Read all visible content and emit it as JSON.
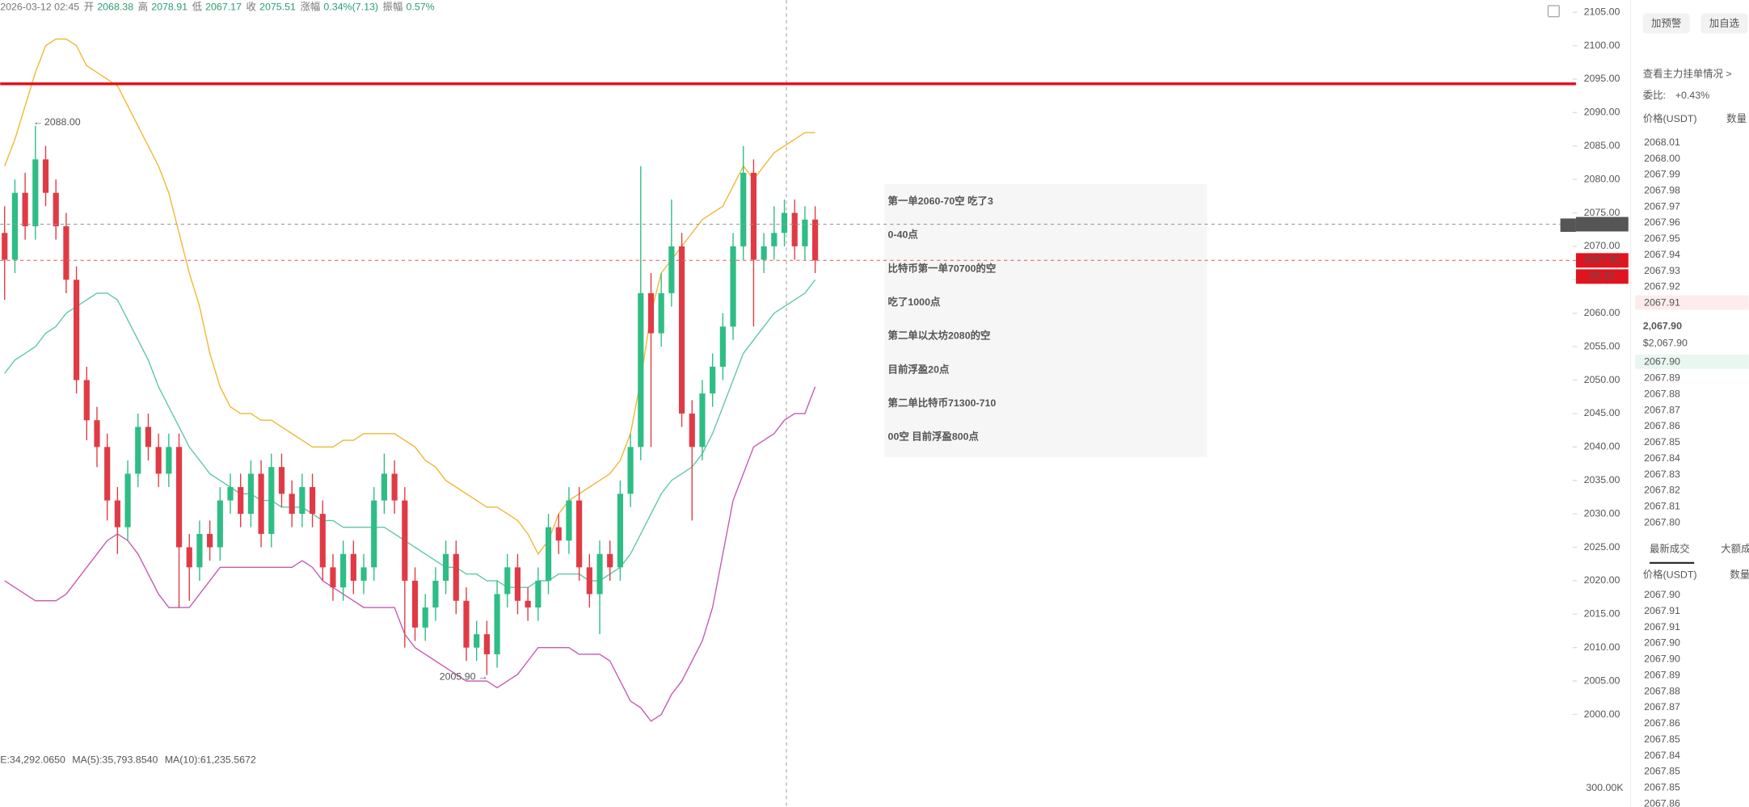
{
  "info_bar": {
    "datetime": "2026-03-12 02:45",
    "items": [
      {
        "label": "开",
        "value": "2068.38"
      },
      {
        "label": "高",
        "value": "2078.91"
      },
      {
        "label": "低",
        "value": "2067.17"
      },
      {
        "label": "收",
        "value": "2075.51"
      },
      {
        "label": "涨幅",
        "value": "0.34%(7.13)"
      },
      {
        "label": "振幅",
        "value": "0.57%"
      }
    ]
  },
  "chart": {
    "type": "candlestick",
    "ylim": [
      2000,
      2105
    ],
    "yticks": [
      {
        "value": 2105,
        "label": "2105.00"
      },
      {
        "value": 2100,
        "label": "2100.00"
      },
      {
        "value": 2095,
        "label": "2095.00"
      },
      {
        "value": 2090,
        "label": "2090.00"
      },
      {
        "value": 2085,
        "label": "2085.00"
      },
      {
        "value": 2080,
        "label": "2080.00"
      },
      {
        "value": 2075,
        "label": "2075.00"
      },
      {
        "value": 2070,
        "label": "2070.00"
      },
      {
        "value": 2065,
        "label": "2065.00"
      },
      {
        "value": 2060,
        "label": "2060.00"
      },
      {
        "value": 2055,
        "label": "2055.00"
      },
      {
        "value": 2050,
        "label": "2050.00"
      },
      {
        "value": 2045,
        "label": "2045.00"
      },
      {
        "value": 2040,
        "label": "2040.00"
      },
      {
        "value": 2035,
        "label": "2035.00"
      },
      {
        "value": 2030,
        "label": "2030.00"
      },
      {
        "value": 2025,
        "label": "2025.00"
      },
      {
        "value": 2020,
        "label": "2020.00"
      },
      {
        "value": 2015,
        "label": "2015.00"
      },
      {
        "value": 2010,
        "label": "2010.00"
      },
      {
        "value": 2005,
        "label": "2005.00"
      },
      {
        "value": 2000,
        "label": "2000.00"
      }
    ],
    "candles": [
      [
        2072,
        2076,
        2062,
        2068
      ],
      [
        2068,
        2080,
        2066,
        2078
      ],
      [
        2078,
        2081,
        2071,
        2073
      ],
      [
        2073,
        2088,
        2071,
        2083
      ],
      [
        2083,
        2085,
        2076,
        2078
      ],
      [
        2078,
        2080,
        2071,
        2073
      ],
      [
        2073,
        2075,
        2063,
        2065
      ],
      [
        2065,
        2067,
        2048,
        2050
      ],
      [
        2050,
        2052,
        2041,
        2044
      ],
      [
        2044,
        2046,
        2037,
        2040
      ],
      [
        2040,
        2042,
        2029,
        2032
      ],
      [
        2032,
        2034,
        2024,
        2028
      ],
      [
        2028,
        2038,
        2026,
        2036
      ],
      [
        2036,
        2045,
        2034,
        2043
      ],
      [
        2043,
        2045,
        2038,
        2040
      ],
      [
        2040,
        2042,
        2034,
        2036
      ],
      [
        2036,
        2042,
        2034,
        2040
      ],
      [
        2040,
        2042,
        2016,
        2025
      ],
      [
        2025,
        2027,
        2017,
        2022
      ],
      [
        2022,
        2029,
        2020,
        2027
      ],
      [
        2027,
        2029,
        2023,
        2025
      ],
      [
        2025,
        2034,
        2023,
        2032
      ],
      [
        2032,
        2036,
        2030,
        2034
      ],
      [
        2034,
        2036,
        2028,
        2030
      ],
      [
        2030,
        2038,
        2028,
        2036
      ],
      [
        2036,
        2038,
        2025,
        2027
      ],
      [
        2027,
        2039,
        2025,
        2037
      ],
      [
        2037,
        2039,
        2031,
        2033
      ],
      [
        2033,
        2035,
        2028,
        2030
      ],
      [
        2030,
        2036,
        2028,
        2034
      ],
      [
        2034,
        2036,
        2028,
        2030
      ],
      [
        2030,
        2032,
        2020,
        2022
      ],
      [
        2022,
        2024,
        2017,
        2019
      ],
      [
        2019,
        2026,
        2017,
        2024
      ],
      [
        2024,
        2026,
        2018,
        2020
      ],
      [
        2020,
        2024,
        2018,
        2022
      ],
      [
        2022,
        2034,
        2020,
        2032
      ],
      [
        2032,
        2039,
        2030,
        2036
      ],
      [
        2036,
        2038,
        2030,
        2032
      ],
      [
        2032,
        2034,
        2010,
        2020
      ],
      [
        2020,
        2022,
        2011,
        2013
      ],
      [
        2013,
        2018,
        2011,
        2016
      ],
      [
        2016,
        2022,
        2014,
        2020
      ],
      [
        2020,
        2026,
        2018,
        2024
      ],
      [
        2024,
        2026,
        2015,
        2017
      ],
      [
        2017,
        2019,
        2008,
        2010
      ],
      [
        2010,
        2014,
        2008,
        2012
      ],
      [
        2012,
        2014,
        2005.9,
        2009
      ],
      [
        2009,
        2020,
        2007,
        2018
      ],
      [
        2018,
        2024,
        2016,
        2022
      ],
      [
        2022,
        2024,
        2015,
        2017
      ],
      [
        2017,
        2019,
        2014,
        2016
      ],
      [
        2016,
        2022,
        2014,
        2020
      ],
      [
        2020,
        2030,
        2018,
        2028
      ],
      [
        2028,
        2030,
        2024,
        2026
      ],
      [
        2026,
        2034,
        2024,
        2032
      ],
      [
        2032,
        2034,
        2020,
        2022
      ],
      [
        2022,
        2024,
        2016,
        2018
      ],
      [
        2018,
        2026,
        2012,
        2024
      ],
      [
        2024,
        2026,
        2020,
        2022
      ],
      [
        2022,
        2035,
        2020,
        2033
      ],
      [
        2033,
        2042,
        2031,
        2040
      ],
      [
        2040,
        2082,
        2038,
        2063
      ],
      [
        2063,
        2066,
        2040,
        2057
      ],
      [
        2057,
        2066,
        2055,
        2063
      ],
      [
        2063,
        2077,
        2061,
        2070
      ],
      [
        2070,
        2072,
        2043,
        2045
      ],
      [
        2045,
        2047,
        2029,
        2040
      ],
      [
        2040,
        2050,
        2038,
        2048
      ],
      [
        2048,
        2054,
        2046,
        2052
      ],
      [
        2052,
        2060,
        2050,
        2058
      ],
      [
        2058,
        2072,
        2056,
        2070
      ],
      [
        2070,
        2085,
        2068,
        2081
      ],
      [
        2081,
        2083,
        2058,
        2068
      ],
      [
        2068,
        2072,
        2066,
        2070
      ],
      [
        2070,
        2076,
        2068,
        2072
      ],
      [
        2072,
        2077,
        2070,
        2075
      ],
      [
        2075,
        2077,
        2068,
        2070
      ],
      [
        2070,
        2076,
        2068,
        2074
      ],
      [
        2074,
        2076,
        2066,
        2067.9
      ]
    ],
    "boll": {
      "upper": [
        2082,
        2086,
        2091,
        2096,
        2100,
        2101,
        2101,
        2100,
        2097,
        2096,
        2095,
        2094,
        2091,
        2088,
        2085,
        2082,
        2078,
        2072,
        2066,
        2061,
        2054,
        2049,
        2046,
        2045,
        2045,
        2044,
        2044,
        2043,
        2042,
        2041,
        2040,
        2040,
        2040,
        2041,
        2041,
        2042,
        2042,
        2042,
        2042,
        2041,
        2040,
        2038,
        2037,
        2035,
        2034,
        2033,
        2032,
        2031,
        2031,
        2030,
        2029,
        2027,
        2024,
        2026,
        2030,
        2032,
        2033,
        2034,
        2035,
        2036,
        2038,
        2042,
        2050,
        2060,
        2066,
        2068,
        2070,
        2072,
        2074,
        2075,
        2076,
        2079,
        2082,
        2080,
        2082,
        2084,
        2085,
        2086,
        2087,
        2087
      ],
      "middle": [
        2051,
        2053,
        2054,
        2055,
        2057,
        2058,
        2060,
        2061,
        2062,
        2063,
        2063,
        2062,
        2059,
        2056,
        2053,
        2049,
        2046,
        2043,
        2040,
        2038,
        2036,
        2035,
        2034,
        2033,
        2033,
        2032,
        2032,
        2031,
        2031,
        2031,
        2030,
        2029,
        2029,
        2028,
        2028,
        2028,
        2028,
        2028,
        2027,
        2026,
        2025,
        2024,
        2023,
        2022,
        2022,
        2021,
        2021,
        2020,
        2020,
        2019,
        2019,
        2019,
        2020,
        2020,
        2021,
        2021,
        2021,
        2020,
        2020,
        2021,
        2022,
        2024,
        2027,
        2030,
        2033,
        2035,
        2036,
        2037,
        2039,
        2042,
        2046,
        2050,
        2054,
        2056,
        2058,
        2060,
        2061,
        2062,
        2063,
        2065
      ],
      "lower": [
        2020,
        2019,
        2018,
        2017,
        2017,
        2017,
        2018,
        2020,
        2022,
        2024,
        2026,
        2027,
        2026,
        2024,
        2021,
        2018,
        2016,
        2016,
        2016,
        2018,
        2020,
        2022,
        2022,
        2022,
        2022,
        2022,
        2022,
        2022,
        2022,
        2023,
        2022,
        2020,
        2019,
        2018,
        2017,
        2016,
        2016,
        2016,
        2016,
        2012,
        2010,
        2009,
        2008,
        2007,
        2006,
        2005,
        2005,
        2005,
        2004,
        2005,
        2006,
        2008,
        2010,
        2010,
        2010,
        2010,
        2009,
        2009,
        2009,
        2008,
        2005,
        2002,
        2001,
        1999,
        2000,
        2003,
        2005,
        2008,
        2011,
        2016,
        2024,
        2032,
        2036,
        2040,
        2041,
        2042,
        2044,
        2045,
        2045,
        2049
      ]
    },
    "high_label": "2088.00",
    "low_label": "2005.90",
    "resistance": 2094.3,
    "price_tags": [
      {
        "value": 2073.31,
        "label": "2073.31"
      },
      {
        "value": 2067.9,
        "label": "2067.90"
      }
    ],
    "countdown": "00:20",
    "volume_labels": [
      "E:34,292.0650",
      "MA(5):35,793.8540",
      "MA(10):61,235.5672"
    ],
    "volume_axis": "300.00K"
  },
  "note": {
    "lines": [
      "第一单2060-70空 吃了3",
      "0-40点",
      "比特币第一单70700的空",
      "吃了1000点",
      "第二单以太坊2080的空",
      "目前浮盈20点",
      "第二单比特币71300-710",
      "00空 目前浮盈800点"
    ]
  },
  "panel": {
    "buttons": [
      "加预警",
      "加自选"
    ],
    "link": "查看主力挂单情况 >",
    "ratio_label": "委比:",
    "ratio_value": "+0.43%",
    "book_header": [
      "价格(USDT)",
      "数量"
    ],
    "asks": [
      "2068.01",
      "2068.00",
      "2067.99",
      "2067.98",
      "2067.97",
      "2067.96",
      "2067.95",
      "2067.94",
      "2067.93",
      "2067.92",
      "2067.91"
    ],
    "last_price": "2,067.90",
    "last_usd": "$2,067.90",
    "bids": [
      "2067.90",
      "2067.89",
      "2067.88",
      "2067.87",
      "2067.86",
      "2067.85",
      "2067.84",
      "2067.83",
      "2067.82",
      "2067.81",
      "2067.80"
    ],
    "tabs": [
      "最新成交",
      "大额成"
    ],
    "trades_header": [
      "价格(USDT)",
      "数量"
    ],
    "trades": [
      {
        "price": "2067.90",
        "color": "#e03b45"
      },
      {
        "price": "2067.91",
        "color": "#2ebd85"
      },
      {
        "price": "2067.91",
        "color": "#2ebd85"
      },
      {
        "price": "2067.90",
        "color": "#e03b45"
      },
      {
        "price": "2067.90",
        "color": "#2ebd85"
      },
      {
        "price": "2067.89",
        "color": "#2ebd85"
      },
      {
        "price": "2067.88",
        "color": "#2ebd85"
      },
      {
        "price": "2067.87",
        "color": "#2ebd85"
      },
      {
        "price": "2067.86",
        "color": "#2ebd85"
      },
      {
        "price": "2067.85",
        "color": "#2ebd85"
      },
      {
        "price": "2067.84",
        "color": "#e03b45"
      },
      {
        "price": "2067.85",
        "color": "#2ebd85"
      },
      {
        "price": "2067.85",
        "color": "#2ebd85"
      },
      {
        "price": "2067.86",
        "color": "#e03b45"
      }
    ]
  }
}
